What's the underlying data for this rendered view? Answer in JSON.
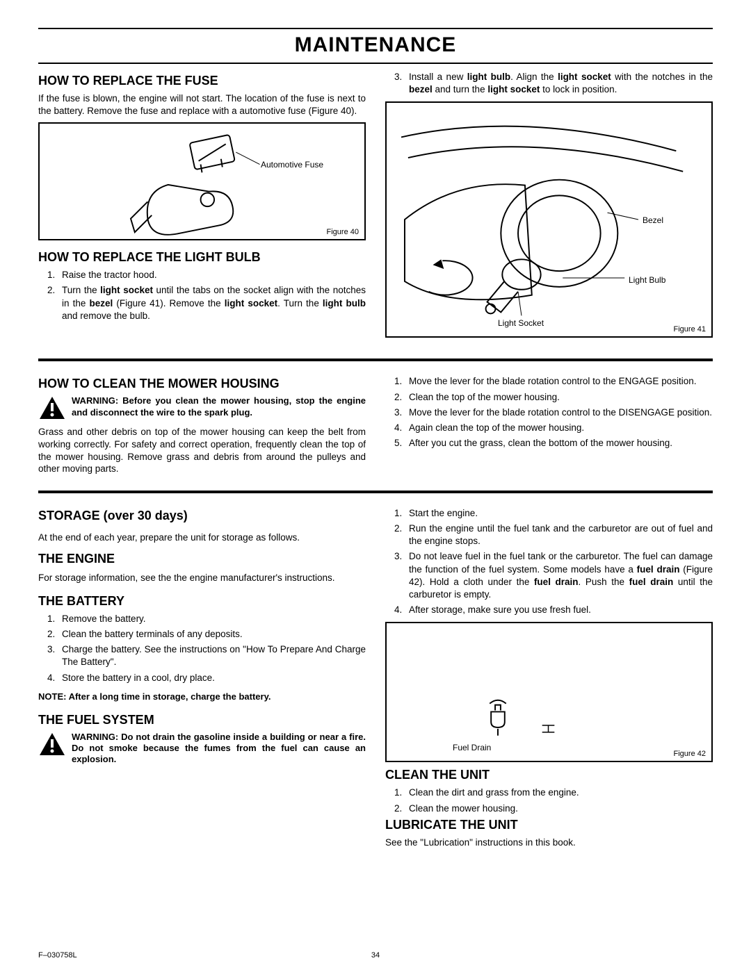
{
  "page": {
    "title": "MAINTENANCE",
    "footer_left": "F–030758L",
    "footer_page": "34"
  },
  "fuse": {
    "heading": "HOW TO REPLACE THE FUSE",
    "text": "If the fuse is blown, the engine will not start. The location of the fuse is next to the battery. Remove the fuse and replace with a automotive fuse (Figure 40).",
    "fig_label": "Automotive Fuse",
    "fig_caption": "Figure 40"
  },
  "bulb": {
    "heading": "HOW TO REPLACE THE LIGHT BULB",
    "steps": [
      "Raise the tractor hood.",
      "Turn the <b>light socket</b> until the tabs on the socket align with the notches in the <b>bezel</b> (Figure 41). Remove the <b>light socket</b>. Turn the <b>light bulb</b> and remove the bulb.",
      "Install a new <b>light bulb</b>. Align the <b>light socket</b> with the notches in the <b>bezel</b> and turn the <b>light socket</b> to lock in position."
    ],
    "fig_labels": {
      "bezel": "Bezel",
      "bulb": "Light Bulb",
      "socket": "Light Socket"
    },
    "fig_caption": "Figure 41"
  },
  "clean_housing": {
    "heading": "HOW TO CLEAN THE MOWER HOUSING",
    "warning": "WARNING: Before you clean the mower housing, stop the engine and disconnect the wire to the spark plug.",
    "text": "Grass and other debris on top of the mower housing can keep the belt from working correctly. For safety and correct operation, frequently clean the top of the mower housing. Remove grass and debris from around the pulleys and other moving parts.",
    "steps": [
      "Move the lever for the blade rotation control to the ENGAGE position.",
      "Clean the top of the mower housing.",
      "Move the lever for the blade rotation control to the DISENGAGE position.",
      "Again clean the top of the mower housing.",
      "After you cut the grass, clean the bottom of the mower housing."
    ]
  },
  "storage": {
    "heading": "STORAGE (over 30 days)",
    "text": "At the end of each year, prepare the unit for storage as follows."
  },
  "engine": {
    "heading": "THE ENGINE",
    "text": "For storage information, see the the engine manufacturer's instructions."
  },
  "battery": {
    "heading": "THE BATTERY",
    "steps": [
      "Remove the battery.",
      "Clean the battery terminals of any deposits.",
      "Charge the battery. See the instructions on \"How To Prepare And Charge The Battery\".",
      "Store the battery in a cool, dry place."
    ],
    "note": "NOTE: After a long time in storage, charge the battery."
  },
  "fuel": {
    "heading": "THE FUEL SYSTEM",
    "warning": "WARNING:  Do not drain the gasoline inside a building or near a fire. Do not smoke because the fumes from the fuel can cause an explosion.",
    "steps": [
      "Start the engine.",
      "Run the engine until the fuel tank and the carburetor are out of fuel and the engine stops.",
      "Do not leave fuel in the fuel tank or the carburetor. The fuel can damage the function of the fuel system. Some models have a <b>fuel drain</b> (Figure 42). Hold a cloth under the <b>fuel drain</b>. Push the <b>fuel drain</b> until the carburetor is empty.",
      "After storage, make sure you use fresh fuel."
    ],
    "fig_label": "Fuel Drain",
    "fig_caption": "Figure 42"
  },
  "clean_unit": {
    "heading": "CLEAN THE UNIT",
    "steps": [
      "Clean the dirt and grass from the engine.",
      "Clean the mower housing."
    ]
  },
  "lubricate": {
    "heading": "LUBRICATE THE UNIT",
    "text": "See the \"Lubrication\" instructions in this book."
  },
  "style": {
    "colors": {
      "text": "#000000",
      "bg": "#ffffff",
      "rule": "#000000"
    },
    "fonts": {
      "title_size": 30,
      "h2_size": 18,
      "body_size": 13.5,
      "caption_size": 11
    }
  }
}
